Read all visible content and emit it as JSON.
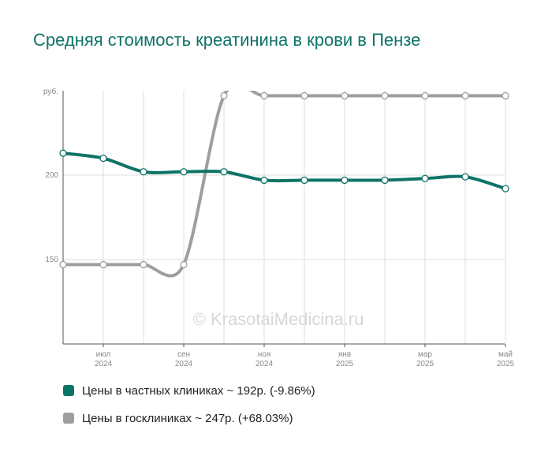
{
  "title": "Средняя стоимость креатинина в крови в Пензе",
  "watermark": "© KrasotaiMedicina.ru",
  "colors": {
    "private": "#0e7367",
    "public": "#9e9e9e",
    "grid": "#dddddd",
    "axis": "#555555",
    "tick_text": "#888888"
  },
  "chart_data": {
    "type": "line",
    "ylabel": "руб.",
    "ylim": [
      100,
      250
    ],
    "yticks": [
      150,
      200
    ],
    "grid": true,
    "legend_position": "bottom",
    "x": [
      "2024-06",
      "2024-07",
      "2024-08",
      "2024-09",
      "2024-10",
      "2024-11",
      "2024-12",
      "2025-01",
      "2025-02",
      "2025-03",
      "2025-04",
      "2025-05"
    ],
    "x_tick_labels": [
      {
        "month": "июл",
        "year": "2024",
        "index": 1
      },
      {
        "month": "сен",
        "year": "2024",
        "index": 3
      },
      {
        "month": "ноя",
        "year": "2024",
        "index": 5
      },
      {
        "month": "янв",
        "year": "2025",
        "index": 7
      },
      {
        "month": "мар",
        "year": "2025",
        "index": 9
      },
      {
        "month": "май",
        "year": "2025",
        "index": 11
      }
    ],
    "series": [
      {
        "name": "Цены в частных клиниках",
        "legend_label": "Цены в частных клиниках ~ 192р. (-9.86%)",
        "color": "#0e7367",
        "values": [
          213,
          210,
          202,
          202,
          202,
          197,
          197,
          197,
          197,
          198,
          199,
          192
        ]
      },
      {
        "name": "Цены в госклиниках",
        "legend_label": "Цены в госклиниках ~ 247р. (+68.03%)",
        "color": "#9e9e9e",
        "values": [
          147,
          147,
          147,
          147,
          247,
          247,
          247,
          247,
          247,
          247,
          247,
          247
        ]
      }
    ]
  }
}
